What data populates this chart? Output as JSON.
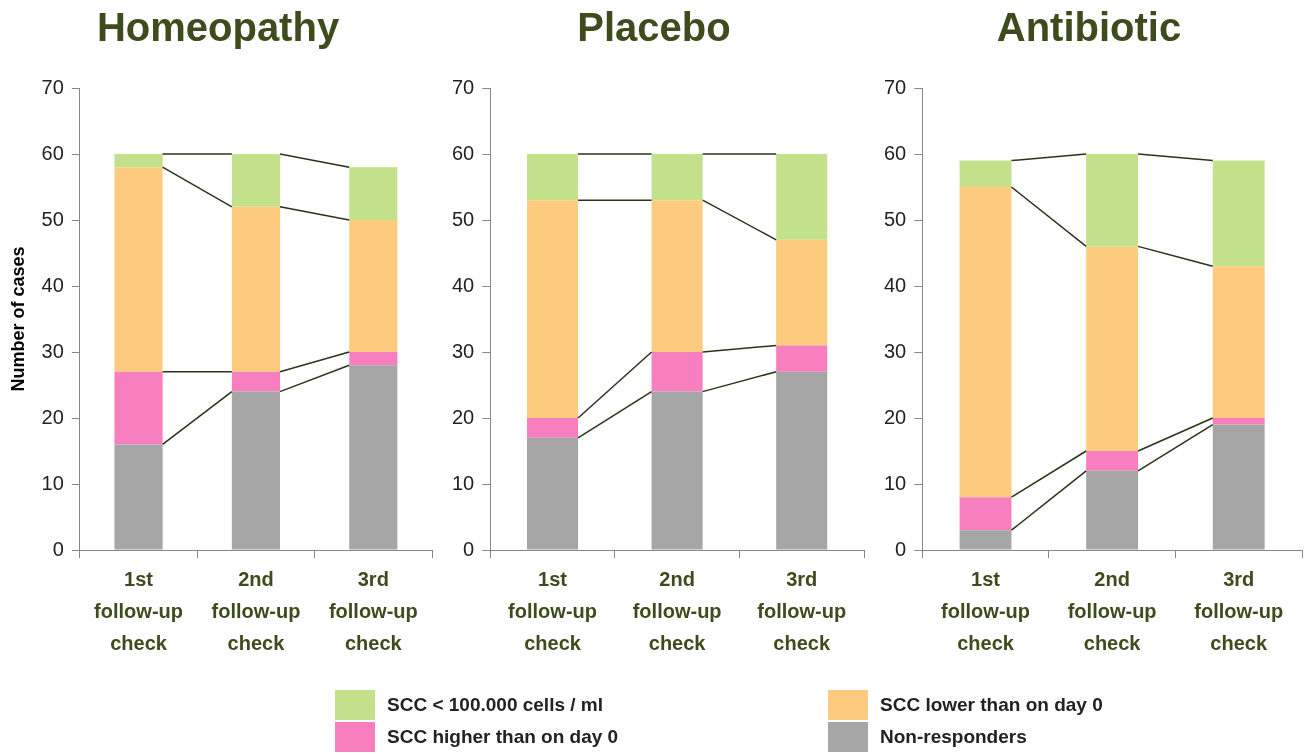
{
  "chart_data": [
    {
      "type": "bar",
      "title": "Homeopathy",
      "ylabel": "Number of cases",
      "categories": [
        "1st follow-up check",
        "2nd follow-up check",
        "3rd follow-up check"
      ],
      "stacked": true,
      "ylim": [
        0,
        70
      ],
      "yticks": [
        0,
        10,
        20,
        30,
        40,
        50,
        60,
        70
      ],
      "grid": false,
      "legend": "bottom",
      "series": [
        {
          "name": "Non-responders",
          "color": "#a6a6a6",
          "values": [
            16,
            24,
            28
          ]
        },
        {
          "name": "SCC higher than on day 0",
          "color": "#f77fbf",
          "values": [
            11,
            3,
            2
          ]
        },
        {
          "name": "SCC lower than on day 0",
          "color": "#fccb7e",
          "values": [
            31,
            25,
            20
          ]
        },
        {
          "name": "SCC < 100.000 cells / ml",
          "color": "#c3e08a",
          "values": [
            2,
            8,
            8
          ]
        }
      ]
    },
    {
      "type": "bar",
      "title": "Placebo",
      "categories": [
        "1st follow-up check",
        "2nd follow-up check",
        "3rd follow-up check"
      ],
      "stacked": true,
      "ylim": [
        0,
        70
      ],
      "yticks": [
        0,
        10,
        20,
        30,
        40,
        50,
        60,
        70
      ],
      "grid": false,
      "series": [
        {
          "color": "#a6a6a6",
          "values": [
            17,
            24,
            27
          ]
        },
        {
          "color": "#f77fbf",
          "values": [
            3,
            6,
            4
          ]
        },
        {
          "color": "#fccb7e",
          "values": [
            33,
            23,
            16
          ]
        },
        {
          "color": "#c3e08a",
          "values": [
            7,
            7,
            13
          ]
        }
      ]
    },
    {
      "type": "bar",
      "title": "Antibiotic",
      "categories": [
        "1st follow-up check",
        "2nd follow-up check",
        "3rd follow-up check"
      ],
      "stacked": true,
      "ylim": [
        0,
        70
      ],
      "yticks": [
        0,
        10,
        20,
        30,
        40,
        50,
        60,
        70
      ],
      "grid": false,
      "series": [
        {
          "color": "#a6a6a6",
          "values": [
            3,
            12,
            19
          ]
        },
        {
          "color": "#f77fbf",
          "values": [
            5,
            3,
            1
          ]
        },
        {
          "color": "#fccb7e",
          "values": [
            47,
            31,
            23
          ]
        },
        {
          "color": "#c3e08a",
          "values": [
            4,
            14,
            16
          ]
        }
      ]
    }
  ]
}
